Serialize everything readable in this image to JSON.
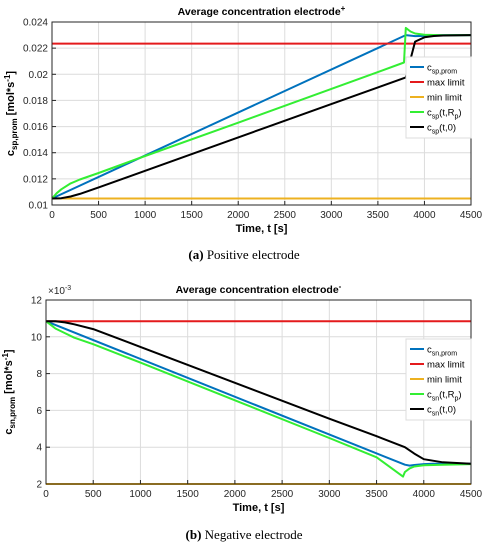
{
  "figure": {
    "captions": [
      {
        "tag": "(a)",
        "text": "Positive electrode"
      },
      {
        "tag": "(b)",
        "text": "Negative electrode"
      }
    ]
  },
  "chart_data": [
    {
      "type": "line",
      "title": "Average concentration electrode",
      "title_sup": "+",
      "xlabel": "Time, t [s]",
      "ylabel_main": "c",
      "ylabel_sub": "sp,prom",
      "ylabel_unit": "[mol*s",
      "ylabel_unit_sup": "-1",
      "ylabel_unit_end": "]",
      "xlim": [
        0,
        4500
      ],
      "ylim": [
        0.01,
        0.024
      ],
      "xticks": [
        0,
        500,
        1000,
        1500,
        2000,
        2500,
        3000,
        3500,
        4000,
        4500
      ],
      "yticks": [
        0.01,
        0.012,
        0.014,
        0.016,
        0.018,
        0.02,
        0.022,
        0.024
      ],
      "ytick_labels": [
        "0.01",
        "0.012",
        "0.014",
        "0.016",
        "0.018",
        "0.02",
        "0.022",
        "0.024"
      ],
      "exponent_label": "",
      "grid": true,
      "legend_position": "right",
      "legend": [
        {
          "main": "c",
          "sub": "sp,prom",
          "rest": ""
        },
        {
          "main": "max limit",
          "sub": "",
          "rest": ""
        },
        {
          "main": "min limit",
          "sub": "",
          "rest": ""
        },
        {
          "main": "c",
          "sub": "sp",
          "rest": "(t,R",
          "sub2": "p",
          "end": ")"
        },
        {
          "main": "c",
          "sub": "sp",
          "rest": "(t,0)"
        }
      ],
      "series": [
        {
          "color": "#0072BD",
          "x": [
            0,
            3800,
            3900,
            4000,
            4100,
            4500
          ],
          "y": [
            0.0105,
            0.023,
            0.02292,
            0.02294,
            0.02298,
            0.023
          ]
        },
        {
          "color": "#E41A1C",
          "x": [
            0,
            4500
          ],
          "y": [
            0.02235,
            0.02235
          ]
        },
        {
          "color": "#EDB120",
          "x": [
            0,
            4500
          ],
          "y": [
            0.0105,
            0.0105
          ]
        },
        {
          "color": "#33EE33",
          "x": [
            0,
            50,
            100,
            200,
            300,
            500,
            1000,
            2000,
            3000,
            3500,
            3780,
            3800,
            3850,
            3900,
            4000,
            4200,
            4500
          ],
          "y": [
            0.0105,
            0.0109,
            0.0112,
            0.01165,
            0.01195,
            0.01245,
            0.01375,
            0.0163,
            0.01888,
            0.02017,
            0.0209,
            0.02355,
            0.02327,
            0.02312,
            0.02302,
            0.02298,
            0.023
          ]
        },
        {
          "color": "#000000",
          "x": [
            0,
            100,
            200,
            300,
            500,
            1000,
            2000,
            3000,
            3500,
            3800,
            3900,
            4000,
            4100,
            4200,
            4500
          ],
          "y": [
            0.0105,
            0.01052,
            0.01065,
            0.01085,
            0.01135,
            0.01262,
            0.01517,
            0.01772,
            0.019,
            0.01976,
            0.0225,
            0.02283,
            0.02293,
            0.02297,
            0.023
          ]
        }
      ]
    },
    {
      "type": "line",
      "title": "Average concentration electrode",
      "title_sup": "-",
      "xlabel": "Time, t [s]",
      "ylabel_main": "c",
      "ylabel_sub": "sn,prom",
      "ylabel_unit": "[mol*s",
      "ylabel_unit_sup": "-1",
      "ylabel_unit_end": "]",
      "xlim": [
        0,
        4500
      ],
      "ylim": [
        2,
        12
      ],
      "xticks": [
        0,
        500,
        1000,
        1500,
        2000,
        2500,
        3000,
        3500,
        4000,
        4500
      ],
      "yticks": [
        2,
        4,
        6,
        8,
        10,
        12
      ],
      "ytick_labels": [
        "2",
        "4",
        "6",
        "8",
        "10",
        "12"
      ],
      "exponent_label": "×10",
      "exponent_sup": "-3",
      "grid": true,
      "legend_position": "right",
      "legend": [
        {
          "main": "c",
          "sub": "sn,prom",
          "rest": ""
        },
        {
          "main": "max limit",
          "sub": "",
          "rest": ""
        },
        {
          "main": "min limit",
          "sub": "",
          "rest": ""
        },
        {
          "main": "c",
          "sub": "sn",
          "rest": "(t,R",
          "sub2": "p",
          "end": ")"
        },
        {
          "main": "c",
          "sub": "sn",
          "rest": "(t,0)"
        }
      ],
      "series": [
        {
          "color": "#0072BD",
          "x": [
            0,
            3800,
            3850,
            3900,
            4000,
            4100,
            4500
          ],
          "y": [
            10.85,
            3.05,
            3.0,
            3.03,
            3.08,
            3.1,
            3.1
          ]
        },
        {
          "color": "#E41A1C",
          "x": [
            0,
            4500
          ],
          "y": [
            10.85,
            10.85
          ]
        },
        {
          "color": "#EDB120",
          "x": [
            0,
            4500
          ],
          "y": [
            2.0,
            2.0
          ]
        },
        {
          "color": "#33EE33",
          "x": [
            0,
            50,
            100,
            200,
            300,
            500,
            1000,
            2000,
            3000,
            3500,
            3780,
            3800,
            3850,
            3900,
            4000,
            4200,
            4500
          ],
          "y": [
            10.85,
            10.65,
            10.45,
            10.2,
            9.95,
            9.6,
            8.6,
            6.55,
            4.5,
            3.45,
            2.4,
            2.65,
            2.85,
            2.95,
            3.02,
            3.05,
            3.08
          ]
        },
        {
          "color": "#000000",
          "x": [
            0,
            100,
            200,
            300,
            500,
            1000,
            2000,
            3000,
            3500,
            3800,
            3900,
            4000,
            4200,
            4500
          ],
          "y": [
            10.85,
            10.85,
            10.78,
            10.68,
            10.42,
            9.45,
            7.5,
            5.55,
            4.6,
            4.0,
            3.65,
            3.35,
            3.18,
            3.1
          ]
        }
      ]
    }
  ]
}
